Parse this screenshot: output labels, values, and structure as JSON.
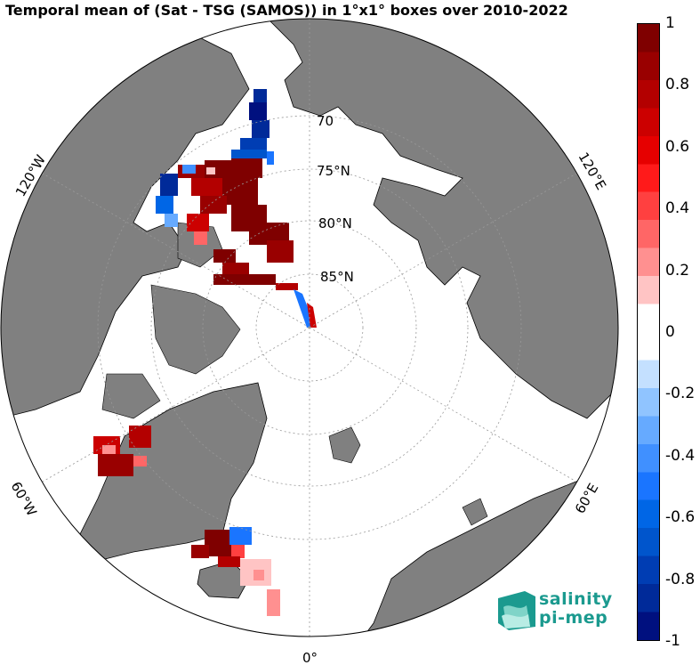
{
  "title": "Temporal mean of (Sat - TSG (SAMOS)) in 1°x1° boxes over 2010-2022",
  "map": {
    "projection": "north polar stereographic",
    "land_color": "#808080",
    "ocean_color": "#ffffff",
    "lat_labels": [
      "70",
      "75°N",
      "80°N",
      "85°N"
    ],
    "lon_labels": [
      "120°W",
      "60°W",
      "0°",
      "60°E",
      "120°E"
    ]
  },
  "colorbar": {
    "min": -1,
    "max": 1,
    "ticks": [
      "1",
      "0.8",
      "0.6",
      "0.4",
      "0.2",
      "0",
      "-0.2",
      "-0.4",
      "-0.6",
      "-0.8",
      "-1"
    ],
    "colors_top_to_bottom": [
      "#7f0000",
      "#990000",
      "#b30000",
      "#cc0000",
      "#e60000",
      "#ff1a1a",
      "#ff4040",
      "#ff6666",
      "#ff9090",
      "#ffc4c4",
      "#ffffff",
      "#ffffff",
      "#c4e0ff",
      "#90c4ff",
      "#66aaff",
      "#4090ff",
      "#1a75ff",
      "#0066e6",
      "#0055cc",
      "#003db3",
      "#002a99",
      "#00107f"
    ]
  },
  "logo": {
    "line1": "salinity",
    "line2": "pi-mep"
  }
}
